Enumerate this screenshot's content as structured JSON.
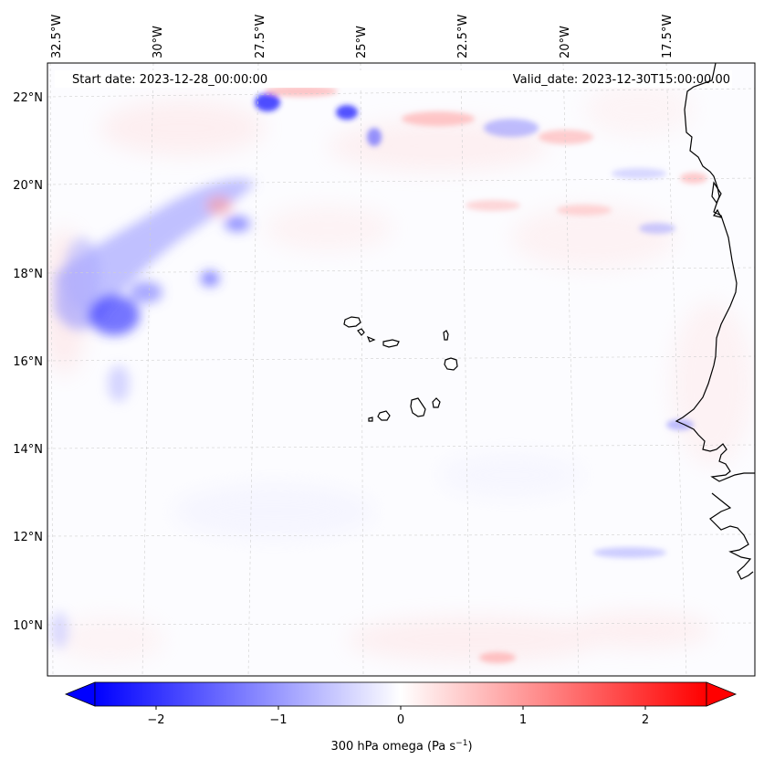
{
  "map": {
    "top_labels": [
      "32.5°W",
      "30°W",
      "27.5°W",
      "25°W",
      "22.5°W",
      "20°W",
      "17.5°W"
    ],
    "left_labels": [
      "22°N",
      "20°N",
      "18°N",
      "16°N",
      "14°N",
      "12°N",
      "10°N"
    ],
    "start_date": "Start date: 2023-12-28_00:00:00",
    "valid_date": "Valid_date: 2023-12-30T15:00:00.00"
  },
  "colorbar": {
    "ticks": [
      "−2",
      "−1",
      "0",
      "1",
      "2"
    ],
    "label": "300 hPa omega (Pa s",
    "label_sup": "−1",
    "label_end": ")"
  },
  "colors": {
    "negative": "#0000ff",
    "positive": "#ff0000",
    "neutral": "#ffffff",
    "coast": "#000000",
    "grid": "#cccccc"
  }
}
